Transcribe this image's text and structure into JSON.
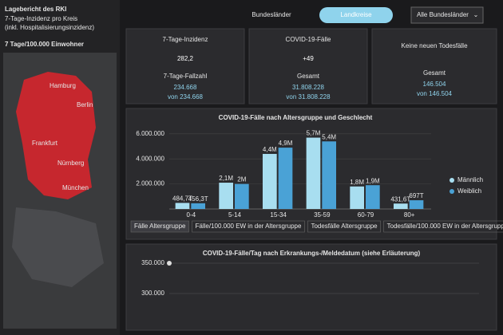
{
  "sidebar": {
    "lines": [
      "Lagebericht des RKI",
      "7-Tage-Inzidenz pro Kreis",
      "(inkl. Hospitalisierungsinzidenz)"
    ],
    "map_title": "7 Tage/100.000 Einwohner",
    "map_labels": [
      "Hamburg",
      "Berlin",
      "Frankfurt",
      "Nürnberg",
      "München"
    ]
  },
  "tabs": {
    "items": [
      "Bundesländer",
      "Landkreise"
    ],
    "dropdown": "Alle Bundesländer"
  },
  "cards": [
    {
      "title": "7-Tage-Inzidenz",
      "value": "282,2",
      "sub_label": "7-Tage-Fallzahl",
      "sub_value": "234.668",
      "sub_from": "von 234.668"
    },
    {
      "title": "COVID-19-Fälle",
      "value": "+49",
      "sub_label": "Gesamt",
      "sub_value": "31.808.228",
      "sub_from": "von 31.808.228"
    },
    {
      "title": "Keine neuen Todesfälle",
      "sub_label": "Gesamt",
      "sub_value": "146.504",
      "sub_from": "von 146.504"
    }
  ],
  "chart_tabs": [
    "Fälle Altersgruppe",
    "Fälle/100.000 EW in der Altersgruppe",
    "Todesfälle Altersgruppe",
    "Todesfälle/100.000 EW in der Altersgruppe"
  ],
  "chart_data": [
    {
      "type": "bar",
      "title": "COVID-19-Fälle nach Altersgruppe und Geschlecht",
      "categories": [
        "0-4",
        "5-14",
        "15-34",
        "35-59",
        "60-79",
        "80+"
      ],
      "series": [
        {
          "name": "Männlich",
          "color": "#a8def0",
          "values": [
            484700,
            2100000,
            4400000,
            5700000,
            1800000,
            431600
          ],
          "value_labels": [
            "484,7T",
            "2,1M",
            "4,4M",
            "5,7M",
            "1,8M",
            "431,6T"
          ]
        },
        {
          "name": "Weiblich",
          "color": "#4aa2d6",
          "values": [
            456300,
            2000000,
            4900000,
            5400000,
            1900000,
            697000
          ],
          "value_labels": [
            "456,3T",
            "2M",
            "4,9M",
            "5,4M",
            "1,9M",
            "697T"
          ]
        }
      ],
      "ylim": [
        0,
        6500000
      ],
      "yticks": [
        {
          "value": 2000000,
          "label": "2.000.000"
        },
        {
          "value": 4000000,
          "label": "4.000.000"
        },
        {
          "value": 6000000,
          "label": "6.000.000"
        }
      ],
      "grid": true
    },
    {
      "type": "line",
      "title": "COVID-19-Fälle/Tag nach Erkrankungs-/Meldedatum (siehe Erläuterung)",
      "ylim": [
        250000,
        350000
      ],
      "yticks": [
        {
          "value": 300000,
          "label": "300.000"
        },
        {
          "value": 350000,
          "label": "350.000"
        }
      ],
      "grid": true
    }
  ]
}
